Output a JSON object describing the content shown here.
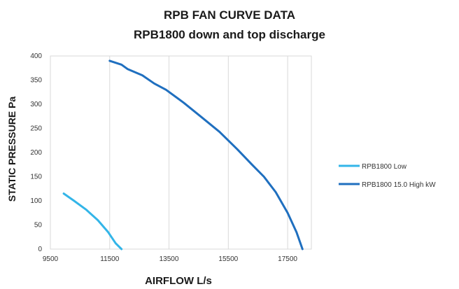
{
  "chart_data": {
    "type": "line",
    "title": "RPB FAN CURVE DATA",
    "subtitle": "RPB1800 down and top discharge",
    "xlabel": "AIRFLOW L/s",
    "ylabel": "STATIC PRESSURE Pa",
    "xlim": [
      9500,
      18300
    ],
    "ylim": [
      0,
      400
    ],
    "xticks": [
      9500,
      11500,
      13500,
      15500,
      17500
    ],
    "yticks": [
      0,
      50,
      100,
      150,
      200,
      250,
      300,
      350,
      400
    ],
    "grid": "vertical",
    "legend_position": "right",
    "series": [
      {
        "name": "RPB1800 Low",
        "color": "#33b5e8",
        "x": [
          9950,
          10300,
          10700,
          11100,
          11450,
          11700,
          11900
        ],
        "y": [
          115,
          100,
          82,
          60,
          35,
          12,
          0
        ]
      },
      {
        "name": "RPB1800 15.0 High kW",
        "color": "#1f6fbf",
        "x": [
          11500,
          11900,
          12100,
          12600,
          13000,
          13400,
          14000,
          14600,
          15200,
          15800,
          16300,
          16700,
          17100,
          17500,
          17800,
          18000
        ],
        "y": [
          390,
          382,
          373,
          360,
          343,
          330,
          303,
          273,
          243,
          207,
          175,
          150,
          118,
          75,
          35,
          0
        ]
      }
    ]
  }
}
